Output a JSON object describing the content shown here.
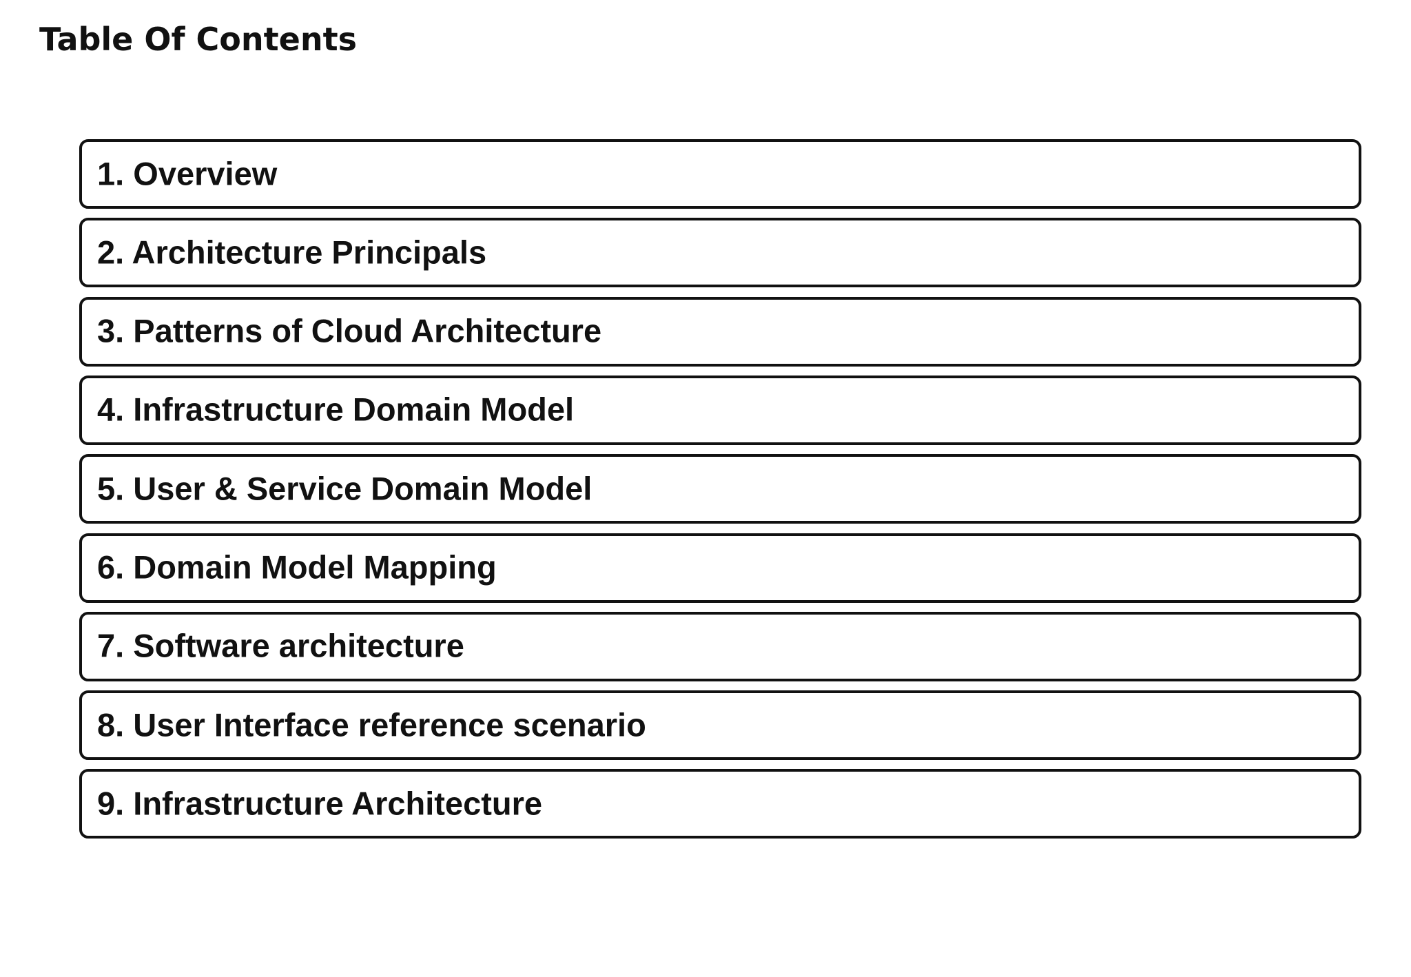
{
  "header": {
    "title": "Table Of Contents"
  },
  "items": [
    "1. Overview",
    "2. Architecture Principals",
    "3. Patterns of Cloud Architecture",
    "4. Infrastructure Domain Model",
    "5. User & Service Domain Model",
    "6. Domain Model Mapping",
    "7. Software architecture",
    "8. User Interface reference scenario",
    "9. Infrastructure Architecture"
  ]
}
